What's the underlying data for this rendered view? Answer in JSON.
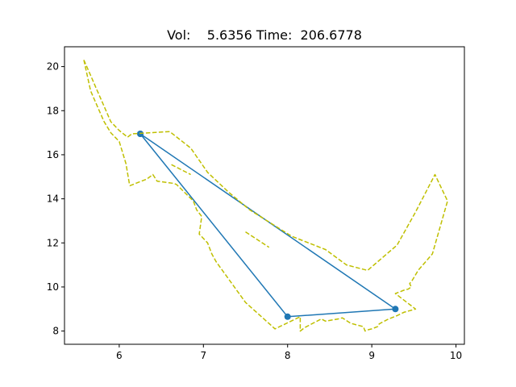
{
  "chart_data": {
    "type": "line",
    "title": "Vol:    5.6356 Time:  206.6778",
    "xlabel": "",
    "ylabel": "",
    "xlim": [
      5.35,
      10.1
    ],
    "ylim": [
      7.4,
      20.9
    ],
    "xticks": [
      6,
      7,
      8,
      9,
      10
    ],
    "yticks": [
      8,
      10,
      12,
      14,
      16,
      18,
      20
    ],
    "grid": false,
    "legend": "none",
    "colors": {
      "triangle": "#1f77b4",
      "boundary": "#bfbf00"
    },
    "series": [
      {
        "style": "solid-with-markers",
        "color": "#1f77b4",
        "x": [
          6.25,
          9.28,
          8.0,
          6.25
        ],
        "y": [
          16.95,
          9.0,
          8.65,
          16.95
        ]
      },
      {
        "style": "dashed",
        "color": "#bfbf00",
        "x": [
          5.58,
          5.66,
          5.74,
          5.82,
          5.9,
          6.0,
          6.1,
          6.15,
          6.6,
          6.85,
          7.05,
          7.3,
          7.55,
          7.8,
          8.05,
          8.45,
          8.7,
          8.95,
          9.3,
          9.52,
          9.75,
          9.9,
          9.72,
          9.55,
          9.48,
          9.45,
          9.47,
          9.43,
          9.38,
          9.28,
          9.52,
          9.38,
          9.3,
          9.2,
          9.15,
          9.1,
          9.08,
          9.07,
          9.0,
          8.95,
          8.92,
          8.9,
          8.85,
          8.75,
          8.65,
          8.6,
          8.45,
          8.4,
          8.3,
          8.2,
          8.15,
          8.15,
          7.85,
          7.5,
          7.15,
          7.1,
          7.05,
          6.95,
          6.98,
          6.92,
          6.88,
          6.72,
          6.68,
          6.65,
          6.45,
          6.4,
          6.33,
          6.13,
          6.12,
          6.08,
          6.0,
          5.9,
          5.82,
          5.74,
          5.66,
          5.58
        ],
        "y": [
          20.3,
          19.6,
          18.9,
          18.2,
          17.5,
          17.1,
          16.8,
          16.95,
          17.05,
          16.3,
          15.2,
          14.3,
          13.5,
          12.9,
          12.3,
          11.7,
          11.0,
          10.75,
          11.9,
          13.4,
          15.1,
          13.9,
          11.5,
          10.75,
          10.3,
          10.15,
          10.0,
          9.9,
          9.85,
          9.7,
          9.0,
          8.85,
          8.7,
          8.55,
          8.45,
          8.35,
          8.3,
          8.2,
          8.1,
          8.05,
          8.0,
          8.2,
          8.25,
          8.35,
          8.6,
          8.55,
          8.45,
          8.55,
          8.35,
          8.15,
          8.0,
          8.65,
          8.1,
          9.3,
          11.15,
          11.5,
          12.0,
          12.4,
          13.2,
          13.5,
          13.9,
          14.5,
          14.65,
          14.7,
          14.8,
          15.1,
          14.9,
          14.6,
          14.7,
          15.6,
          16.6,
          17.0,
          17.5,
          18.2,
          18.9,
          20.3
        ]
      },
      {
        "style": "dashed",
        "color": "#bfbf00",
        "x": [
          7.5,
          7.78
        ],
        "y": [
          12.5,
          11.8
        ]
      },
      {
        "style": "dashed",
        "color": "#bfbf00",
        "x": [
          6.62,
          6.85
        ],
        "y": [
          15.55,
          15.1
        ]
      }
    ]
  }
}
